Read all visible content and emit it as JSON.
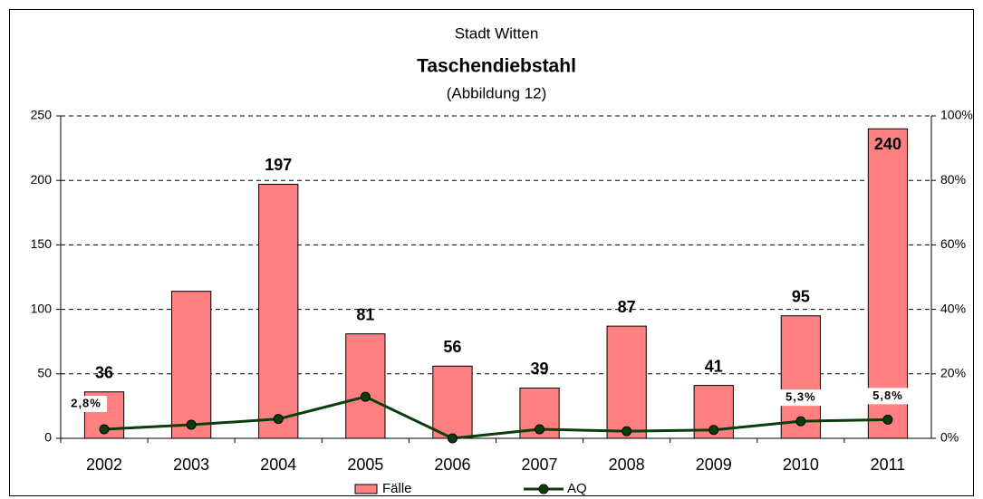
{
  "chart_data": {
    "type": "bar_line",
    "title": "Taschendiebstahl",
    "subtitle": "Stadt Witten",
    "annotation": "(Abbildung 12)",
    "categories": [
      "2002",
      "2003",
      "2004",
      "2005",
      "2006",
      "2007",
      "2008",
      "2009",
      "2010",
      "2011"
    ],
    "series": [
      {
        "name": "Fälle",
        "color": "#ff8080",
        "type": "bar",
        "values": [
          36,
          114,
          197,
          81,
          56,
          39,
          87,
          41,
          95,
          240
        ],
        "value_labels": [
          "36",
          null,
          "197",
          "81",
          "56",
          "39",
          "87",
          "41",
          "95",
          "240"
        ]
      },
      {
        "name": "AQ",
        "color": "#0b3d0b",
        "type": "line",
        "axis": "y2",
        "values": [
          2.8,
          4.2,
          6.0,
          12.9,
          0,
          2.8,
          2.2,
          2.6,
          5.3,
          5.8
        ],
        "value_labels": [
          "2,8%",
          null,
          null,
          null,
          null,
          null,
          null,
          null,
          "5,3%",
          "5,8%"
        ]
      }
    ],
    "ylim": [
      0,
      250
    ],
    "yticks": [
      0,
      50,
      100,
      150,
      200,
      250
    ],
    "y2lim": [
      0,
      100
    ],
    "y2ticks": [
      {
        "value": 0,
        "label": "0%"
      },
      {
        "value": 20,
        "label": "20%"
      },
      {
        "value": 40,
        "label": "40%"
      },
      {
        "value": 60,
        "label": "60%"
      },
      {
        "value": 80,
        "label": "80%"
      },
      {
        "value": 100,
        "label": "100%"
      }
    ],
    "grid": true,
    "legend": "bottom"
  }
}
